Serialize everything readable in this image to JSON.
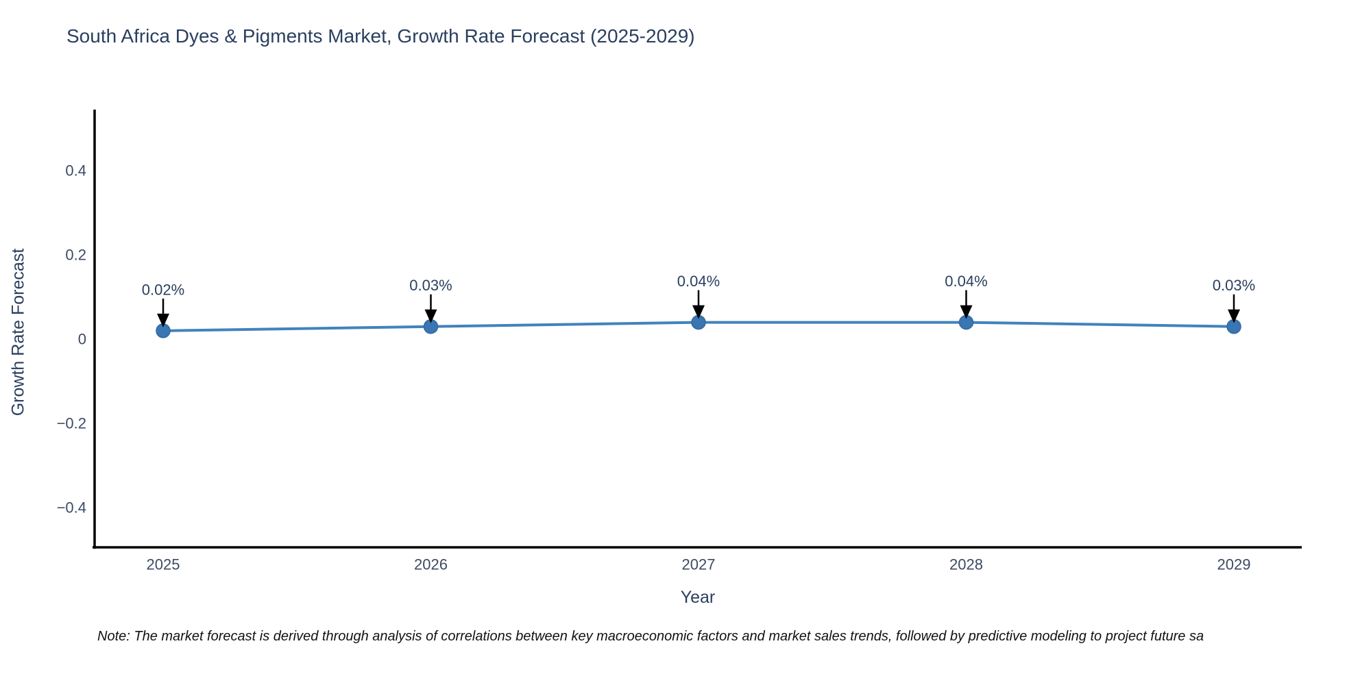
{
  "title": "South Africa Dyes & Pigments Market, Growth Rate Forecast (2025-2029)",
  "note": "Note: The market forecast is derived through analysis of correlations between key macroeconomic factors and market sales trends, followed by predictive modeling to project future sa",
  "chart_data": {
    "type": "line",
    "title": "South Africa Dyes & Pigments Market, Growth Rate Forecast (2025-2029)",
    "xlabel": "Year",
    "ylabel": "Growth Rate Forecast",
    "categories": [
      "2025",
      "2026",
      "2027",
      "2028",
      "2029"
    ],
    "series": [
      {
        "name": "Growth Rate Forecast",
        "values": [
          0.02,
          0.03,
          0.04,
          0.04,
          0.03
        ]
      }
    ],
    "point_labels": [
      "0.02%",
      "0.03%",
      "0.04%",
      "0.04%",
      "0.03%"
    ],
    "ytick_values": [
      0.4,
      0.2,
      0,
      -0.2,
      -0.4
    ],
    "ytick_labels": [
      "0.4",
      "0.2",
      "0",
      "−0.2",
      "−0.4"
    ],
    "ylim": [
      -0.494,
      0.545
    ],
    "grid": false,
    "legend_position": "none",
    "colors": {
      "line": "#4183bd",
      "marker": "#3a76b2",
      "marker_edge": "#2f6aa5",
      "axis_line": "#000000",
      "title_text": "#2a3f5f",
      "tick_text": "#3c4b63",
      "annotation_text": "#2a3f5f",
      "annotation_arrow": "#000000"
    }
  }
}
